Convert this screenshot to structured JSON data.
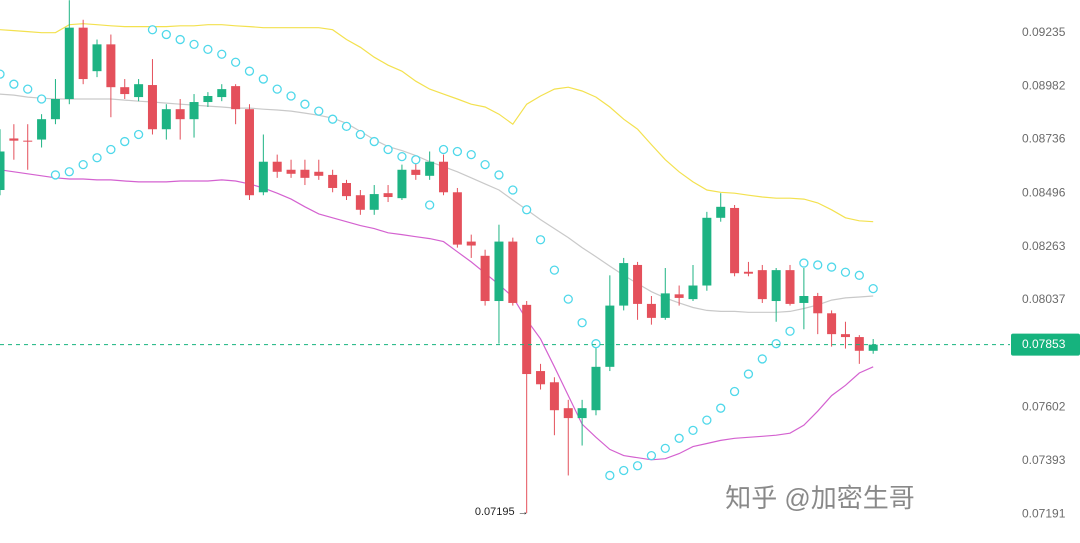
{
  "chart_data": {
    "type": "candlestick",
    "log_scale": true,
    "ylim": [
      0.07084,
      0.09393
    ],
    "yticks": [
      0.09235,
      0.08982,
      0.08736,
      0.08496,
      0.08263,
      0.08037,
      0.07602,
      0.07393,
      0.07191
    ],
    "grid": false,
    "up_color": "#1db383",
    "down_color": "#e4505b",
    "open": [
      0.0851,
      0.08741,
      0.08731,
      0.08736,
      0.08829,
      0.08922,
      0.09259,
      0.09052,
      0.09179,
      0.08977,
      0.08931,
      0.08987,
      0.08783,
      0.08875,
      0.08829,
      0.08908,
      0.08931,
      0.08982,
      0.08875,
      0.085,
      0.08636,
      0.086,
      0.086,
      0.08591,
      0.08577,
      0.08541,
      0.08487,
      0.08423,
      0.08496,
      0.08474,
      0.086,
      0.08573,
      0.08636,
      0.085,
      0.08285,
      0.08224,
      0.08033,
      0.08285,
      0.08017,
      0.07746,
      0.07701,
      0.07598,
      0.07559,
      0.0759,
      0.07763,
      0.08014,
      0.08185,
      0.08021,
      0.07963,
      0.08061,
      0.08041,
      0.08098,
      0.08388,
      0.08431,
      0.08156,
      0.08163,
      0.08033,
      0.08163,
      0.08025,
      0.08054,
      0.07982,
      0.07896,
      0.07884,
      0.07828
    ],
    "high": [
      0.08783,
      0.08806,
      0.08806,
      0.08852,
      0.09015,
      0.09392,
      0.09297,
      0.09202,
      0.09226,
      0.09015,
      0.09015,
      0.09109,
      0.08898,
      0.08922,
      0.08945,
      0.08954,
      0.08991,
      0.08991,
      0.08898,
      0.08759,
      0.08668,
      0.08645,
      0.08645,
      0.08645,
      0.086,
      0.08555,
      0.0851,
      0.08532,
      0.08532,
      0.08623,
      0.08645,
      0.08682,
      0.08668,
      0.08519,
      0.08315,
      0.0825,
      0.08358,
      0.08302,
      0.08033,
      0.07775,
      0.07721,
      0.07631,
      0.07631,
      0.07876,
      0.08141,
      0.08215,
      0.08198,
      0.08054,
      0.08172,
      0.08098,
      0.08185,
      0.08414,
      0.08496,
      0.08444,
      0.08198,
      0.08185,
      0.08172,
      0.08185,
      0.08172,
      0.08067,
      0.07994,
      0.07947,
      0.07892,
      0.07876
    ],
    "low": [
      0.08487,
      0.08645,
      0.086,
      0.087,
      0.08806,
      0.08898,
      0.08991,
      0.09024,
      0.08838,
      0.08922,
      0.08912,
      0.08759,
      0.08736,
      0.08736,
      0.08745,
      0.08885,
      0.08912,
      0.08806,
      0.08466,
      0.08487,
      0.08564,
      0.08564,
      0.08532,
      0.08555,
      0.085,
      0.08466,
      0.08401,
      0.08401,
      0.08457,
      0.08466,
      0.08555,
      0.08555,
      0.08487,
      0.08259,
      0.08215,
      0.08014,
      0.07857,
      0.08014,
      0.07195,
      0.07672,
      0.07492,
      0.07337,
      0.07452,
      0.0757,
      0.07746,
      0.07994,
      0.07955,
      0.07935,
      0.07955,
      0.08014,
      0.08033,
      0.08076,
      0.08371,
      0.08137,
      0.08137,
      0.08025,
      0.07947,
      0.08014,
      0.07916,
      0.07896,
      0.07845,
      0.07837,
      0.07775,
      0.07816
    ],
    "close": [
      0.08682,
      0.08731,
      0.08729,
      0.08829,
      0.08922,
      0.09259,
      0.09015,
      0.09179,
      0.08977,
      0.08945,
      0.08991,
      0.08783,
      0.08875,
      0.08829,
      0.08908,
      0.08936,
      0.08968,
      0.08875,
      0.08487,
      0.08636,
      0.08591,
      0.08582,
      0.08564,
      0.08573,
      0.08519,
      0.08483,
      0.08423,
      0.08492,
      0.08479,
      0.086,
      0.08577,
      0.08636,
      0.085,
      0.08272,
      0.08268,
      0.08033,
      0.08285,
      0.08025,
      0.07734,
      0.07693,
      0.0759,
      0.07559,
      0.07598,
      0.07763,
      0.08014,
      0.08193,
      0.08021,
      0.07963,
      0.08065,
      0.08046,
      0.08098,
      0.08388,
      0.08436,
      0.0815,
      0.08148,
      0.08041,
      0.08163,
      0.08021,
      0.08054,
      0.07982,
      0.07896,
      0.07884,
      0.07828,
      0.07853
    ],
    "upper_band": {
      "color": "#f3e14f",
      "values": [
        0.09249,
        0.09245,
        0.0924,
        0.09235,
        0.09235,
        0.09273,
        0.09278,
        0.09273,
        0.09268,
        0.09264,
        0.09264,
        0.09264,
        0.09264,
        0.09268,
        0.09268,
        0.09273,
        0.09273,
        0.09268,
        0.09264,
        0.09259,
        0.09259,
        0.09259,
        0.09259,
        0.09259,
        0.09249,
        0.09202,
        0.09165,
        0.09118,
        0.0908,
        0.09052,
        0.09005,
        0.08968,
        0.08945,
        0.08922,
        0.08898,
        0.08885,
        0.08852,
        0.08806,
        0.08898,
        0.08936,
        0.08968,
        0.08977,
        0.08959,
        0.08931,
        0.08885,
        0.08829,
        0.08783,
        0.08713,
        0.08645,
        0.08591,
        0.08546,
        0.0851,
        0.085,
        0.08496,
        0.08487,
        0.08479,
        0.08474,
        0.08474,
        0.0847,
        0.08453,
        0.08423,
        0.08388,
        0.08375,
        0.08371
      ]
    },
    "middle_band": {
      "color": "#c9c9c9",
      "values": [
        0.08945,
        0.0894,
        0.08931,
        0.08926,
        0.08922,
        0.08922,
        0.08922,
        0.08922,
        0.08922,
        0.08917,
        0.08912,
        0.08908,
        0.08903,
        0.08898,
        0.08894,
        0.08889,
        0.08885,
        0.0888,
        0.0888,
        0.08875,
        0.08871,
        0.08866,
        0.08857,
        0.08847,
        0.08834,
        0.0881,
        0.08773,
        0.08736,
        0.08704,
        0.08686,
        0.08664,
        0.08636,
        0.08614,
        0.08591,
        0.08564,
        0.08537,
        0.0851,
        0.08466,
        0.08423,
        0.0838,
        0.08341,
        0.08302,
        0.08259,
        0.0822,
        0.0818,
        0.08141,
        0.08106,
        0.08072,
        0.08046,
        0.08025,
        0.08006,
        0.07994,
        0.0799,
        0.0799,
        0.07986,
        0.07986,
        0.07986,
        0.0799,
        0.08002,
        0.08017,
        0.08037,
        0.08046,
        0.0805,
        0.08054
      ]
    },
    "lower_band": {
      "color": "#d462d0",
      "values": [
        0.086,
        0.08591,
        0.08582,
        0.08573,
        0.08564,
        0.08559,
        0.08559,
        0.08555,
        0.08555,
        0.0855,
        0.08546,
        0.08546,
        0.08546,
        0.0855,
        0.0855,
        0.0855,
        0.08555,
        0.0855,
        0.08537,
        0.08519,
        0.08496,
        0.0847,
        0.08436,
        0.08405,
        0.08388,
        0.08371,
        0.08354,
        0.08341,
        0.08323,
        0.08315,
        0.08306,
        0.08298,
        0.08285,
        0.08241,
        0.08198,
        0.0815,
        0.08102,
        0.0805,
        0.07955,
        0.07877,
        0.07763,
        0.07648,
        0.07535,
        0.07484,
        0.07437,
        0.07413,
        0.07405,
        0.07397,
        0.07401,
        0.07421,
        0.07448,
        0.0746,
        0.07472,
        0.0748,
        0.07484,
        0.07488,
        0.07492,
        0.075,
        0.07531,
        0.07586,
        0.07648,
        0.07689,
        0.07738,
        0.07763
      ]
    },
    "sar": {
      "color": "#4fd8ea",
      "values": [
        0.09038,
        0.08991,
        0.08968,
        0.08922,
        0.08577,
        0.08591,
        0.08623,
        0.08654,
        0.08691,
        0.08727,
        0.08759,
        0.09249,
        0.09226,
        0.09202,
        0.09179,
        0.09155,
        0.09132,
        0.09094,
        0.09052,
        0.09015,
        0.08968,
        0.08936,
        0.08898,
        0.08866,
        0.08829,
        0.08796,
        0.08759,
        0.08727,
        0.08691,
        0.08659,
        0.08645,
        0.08444,
        0.08691,
        0.08682,
        0.08668,
        0.08623,
        0.08577,
        0.0851,
        0.08423,
        0.08293,
        0.08163,
        0.08041,
        0.07943,
        0.07857,
        0.07337,
        0.07356,
        0.07374,
        0.07413,
        0.07441,
        0.0748,
        0.07511,
        0.07551,
        0.07598,
        0.07664,
        0.07734,
        0.07795,
        0.07857,
        0.07908,
        0.08193,
        0.08185,
        0.08176,
        0.08154,
        0.08141,
        0.08085
      ]
    },
    "last_price": 0.07853,
    "last_price_color": "#16b37e",
    "annotations": [
      {
        "text": "0.07195 →"
      }
    ],
    "watermark": "知乎 @加密生哥"
  }
}
